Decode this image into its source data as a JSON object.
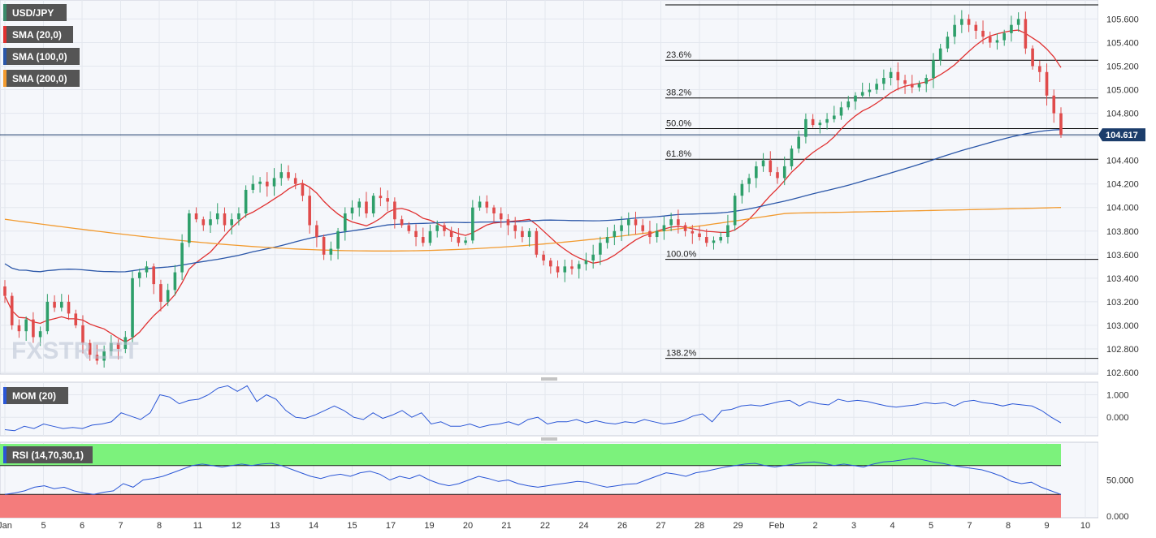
{
  "colors": {
    "background": "#f5f7fb",
    "grid": "#e3e7ee",
    "up_candle": "#2e9f6a",
    "down_candle": "#e04b4b",
    "sma20": "#e03030",
    "sma100": "#2a56a8",
    "sma200": "#f29a2e",
    "fib_line": "#000000",
    "price_tag": "#1c3d6b",
    "legend_bg": "#555555",
    "rsi_overbought": "#7cf27c",
    "rsi_oversold": "#f47c7c",
    "oscillator_line": "#2a56d6"
  },
  "legend": {
    "symbol": "USD/JPY",
    "sma20": "SMA (20,0)",
    "sma100": "SMA (100,0)",
    "sma200": "SMA (200,0)"
  },
  "watermark": "FXSTREET",
  "price_tag": "104.617",
  "chart_data": [
    {
      "type": "candlestick",
      "symbol": "USD/JPY",
      "timeframe": "4h",
      "ylim": [
        102.6,
        105.72
      ],
      "y_ticks": [
        "102.600",
        "102.800",
        "103.000",
        "103.200",
        "103.400",
        "103.600",
        "103.800",
        "104.000",
        "104.200",
        "104.400",
        "104.600",
        "104.800",
        "105.000",
        "105.200",
        "105.400",
        "105.600"
      ],
      "x_ticks": [
        "Jan",
        "5",
        "6",
        "7",
        "8",
        "11",
        "12",
        "13",
        "14",
        "15",
        "17",
        "19",
        "20",
        "21",
        "22",
        "24",
        "26",
        "27",
        "28",
        "29",
        "Feb",
        "2",
        "3",
        "4",
        "5",
        "7",
        "8",
        "9",
        "10"
      ],
      "series": [
        {
          "name": "USD/JPY",
          "closes": [
            103.25,
            103.0,
            102.95,
            103.05,
            102.9,
            102.95,
            103.2,
            103.15,
            103.2,
            103.1,
            103.0,
            102.85,
            102.75,
            102.7,
            102.78,
            102.85,
            102.8,
            102.9,
            103.4,
            103.45,
            103.5,
            103.35,
            103.2,
            103.3,
            103.45,
            103.7,
            103.95,
            103.9,
            103.85,
            103.9,
            103.95,
            103.85,
            103.9,
            103.95,
            104.15,
            104.2,
            104.22,
            104.18,
            104.25,
            104.3,
            104.25,
            104.2,
            104.1,
            103.85,
            103.75,
            103.6,
            103.65,
            103.8,
            103.95,
            104.0,
            104.05,
            103.95,
            104.1,
            104.08,
            104.05,
            103.9,
            103.85,
            103.8,
            103.75,
            103.7,
            103.8,
            103.85,
            103.8,
            103.75,
            103.7,
            103.72,
            104.0,
            104.05,
            104.0,
            103.95,
            103.9,
            103.85,
            103.8,
            103.75,
            103.8,
            103.6,
            103.55,
            103.5,
            103.45,
            103.5,
            103.48,
            103.52,
            103.55,
            103.6,
            103.7,
            103.75,
            103.8,
            103.85,
            103.9,
            103.85,
            103.8,
            103.75,
            103.8,
            103.85,
            103.9,
            103.85,
            103.8,
            103.78,
            103.75,
            103.7,
            103.72,
            103.75,
            103.85,
            104.1,
            104.2,
            104.25,
            104.35,
            104.4,
            104.3,
            104.25,
            104.35,
            104.5,
            104.6,
            104.75,
            104.7,
            104.72,
            104.75,
            104.78,
            104.85,
            104.9,
            104.95,
            104.98,
            105.0,
            105.05,
            105.1,
            105.15,
            105.08,
            105.05,
            105.02,
            105.05,
            105.1,
            105.25,
            105.35,
            105.45,
            105.55,
            105.6,
            105.55,
            105.5,
            105.45,
            105.4,
            105.42,
            105.48,
            105.55,
            105.6,
            105.35,
            105.2,
            105.15,
            104.95,
            104.8,
            104.617
          ],
          "ohlc_last": {
            "open": 104.72,
            "high": 104.88,
            "low": 104.55,
            "close": 104.617
          }
        },
        {
          "name": "SMA (20,0)",
          "start": 103.38,
          "end": 105.33
        },
        {
          "name": "SMA (100,0)",
          "start": 103.64,
          "end": 104.42
        },
        {
          "name": "SMA (200,0)",
          "start": 103.9,
          "end": 104.0
        }
      ],
      "fibonacci": [
        {
          "label": "",
          "value": 105.72
        },
        {
          "label": "23.6%",
          "value": 105.25
        },
        {
          "label": "38.2%",
          "value": 104.93
        },
        {
          "label": "50.0%",
          "value": 104.67
        },
        {
          "label": "61.8%",
          "value": 104.41
        },
        {
          "label": "100.0%",
          "value": 103.56
        },
        {
          "label": "138.2%",
          "value": 102.72
        }
      ],
      "last_price": 104.617
    },
    {
      "type": "line",
      "name": "MOM (20)",
      "y_ticks": [
        "1.000",
        "0.000"
      ],
      "ylim": [
        -0.75,
        1.45
      ],
      "values": [
        -0.55,
        -0.6,
        -0.4,
        -0.5,
        -0.3,
        -0.4,
        -0.5,
        -0.45,
        -0.5,
        -0.35,
        -0.3,
        -0.2,
        0.2,
        0.05,
        -0.1,
        0.2,
        1.0,
        0.9,
        0.6,
        0.75,
        0.8,
        1.0,
        1.3,
        1.4,
        1.15,
        1.4,
        0.7,
        1.0,
        0.8,
        0.3,
        0.0,
        -0.05,
        0.1,
        0.3,
        0.5,
        0.3,
        0.0,
        -0.1,
        0.2,
        -0.05,
        0.1,
        0.3,
        0.0,
        0.2,
        -0.3,
        -0.2,
        -0.4,
        -0.4,
        -0.3,
        -0.45,
        -0.35,
        -0.3,
        -0.2,
        -0.35,
        -0.1,
        0.0,
        -0.3,
        -0.2,
        -0.2,
        -0.1,
        -0.25,
        -0.15,
        -0.25,
        -0.3,
        -0.2,
        -0.25,
        -0.1,
        -0.2,
        -0.3,
        -0.25,
        -0.15,
        0.05,
        0.15,
        -0.2,
        0.3,
        0.35,
        0.5,
        0.55,
        0.5,
        0.6,
        0.7,
        0.75,
        0.5,
        0.7,
        0.6,
        0.55,
        0.8,
        0.7,
        0.75,
        0.7,
        0.6,
        0.5,
        0.45,
        0.5,
        0.55,
        0.65,
        0.6,
        0.65,
        0.5,
        0.7,
        0.75,
        0.65,
        0.6,
        0.5,
        0.6,
        0.55,
        0.5,
        0.3,
        0.0,
        -0.25
      ]
    },
    {
      "type": "line",
      "name": "RSI (14,70,30,1)",
      "y_ticks": [
        "50.000",
        "0.000"
      ],
      "ylim": [
        0,
        100
      ],
      "overbought": 70,
      "oversold": 30,
      "values": [
        30,
        32,
        35,
        40,
        42,
        38,
        40,
        35,
        32,
        30,
        33,
        35,
        45,
        40,
        50,
        52,
        55,
        60,
        65,
        70,
        72,
        70,
        68,
        70,
        72,
        70,
        72,
        73,
        70,
        65,
        60,
        55,
        52,
        56,
        58,
        55,
        60,
        62,
        58,
        50,
        55,
        52,
        57,
        50,
        45,
        42,
        45,
        50,
        55,
        52,
        48,
        50,
        45,
        42,
        40,
        42,
        44,
        46,
        48,
        47,
        43,
        40,
        42,
        44,
        45,
        50,
        55,
        60,
        58,
        55,
        60,
        62,
        65,
        68,
        70,
        72,
        73,
        70,
        68,
        70,
        72,
        74,
        75,
        73,
        70,
        72,
        70,
        68,
        72,
        75,
        76,
        78,
        80,
        78,
        75,
        73,
        70,
        68,
        66,
        64,
        60,
        55,
        48,
        45,
        47,
        40,
        35,
        30
      ]
    }
  ]
}
